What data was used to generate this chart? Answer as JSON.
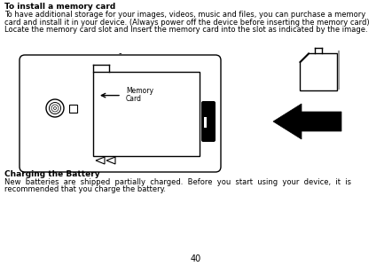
{
  "bg_color": "#ffffff",
  "title_text": "To install a memory card",
  "body_line1": "To have additional storage for your images, videos, music and files, you can purchase a memory",
  "body_line2": "card and install it in your device. (Always power off the device before inserting the memory card)",
  "body_line3": "Locate the memory card slot and Insert the memory card into the slot as indicated by the image.",
  "charging_title": "Charging the Battery",
  "charging_line1": "New  batteries  are  shipped  partially  charged.  Before  you  start  using  your  device,  it  is",
  "charging_line2": "recommended that you charge the battery.",
  "page_number": "40",
  "font_color": "#000000"
}
